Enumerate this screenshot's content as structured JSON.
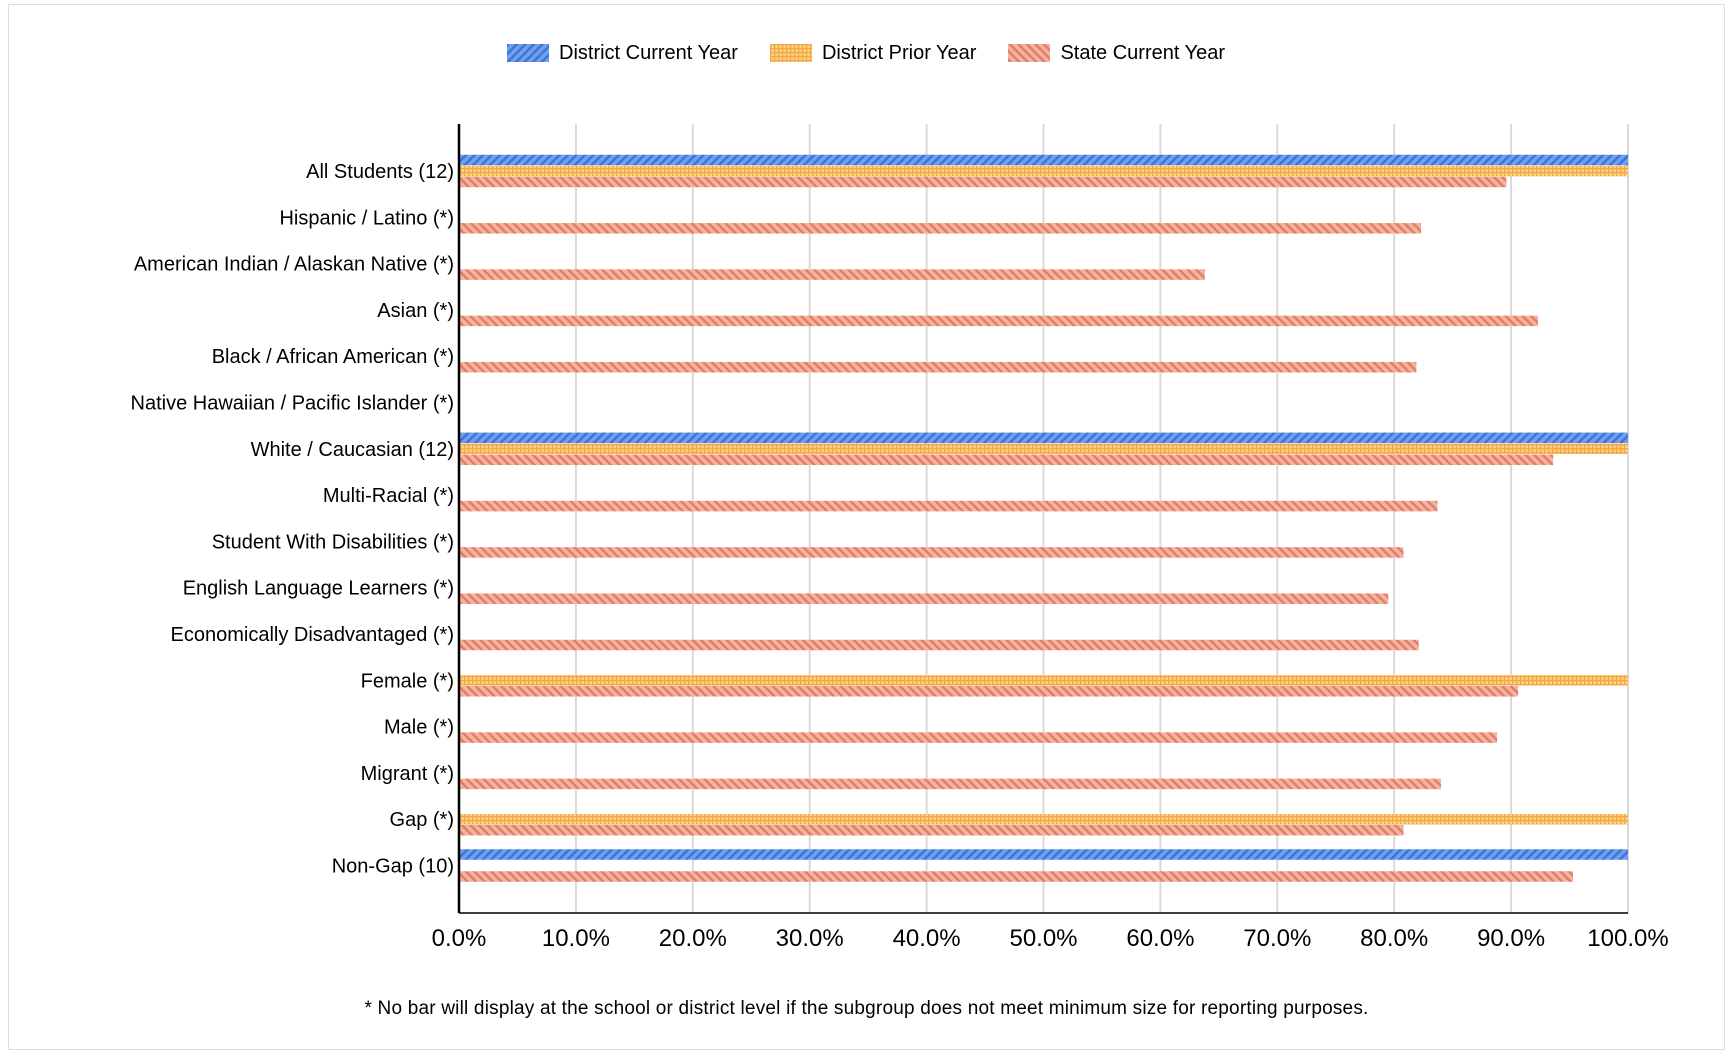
{
  "chart_data": {
    "type": "bar",
    "orientation": "horizontal",
    "categories": [
      "All Students (12)",
      "Hispanic / Latino (*)",
      "American Indian / Alaskan Native (*)",
      "Asian (*)",
      "Black / African American (*)",
      "Native Hawaiian / Pacific Islander (*)",
      "White / Caucasian (12)",
      "Multi-Racial (*)",
      "Student With Disabilities (*)",
      "English Language Learners (*)",
      "Economically Disadvantaged (*)",
      "Female (*)",
      "Male (*)",
      "Migrant (*)",
      "Gap (*)",
      "Non-Gap (10)"
    ],
    "series": [
      {
        "name": "District Current Year",
        "color": "#4a86e8",
        "pattern": "diagonal-hatch",
        "values": [
          100,
          null,
          null,
          null,
          null,
          null,
          100,
          null,
          null,
          null,
          null,
          null,
          null,
          null,
          null,
          100
        ]
      },
      {
        "name": "District Prior Year",
        "color": "#f6b26b",
        "pattern": "grid",
        "values": [
          100,
          null,
          null,
          null,
          null,
          null,
          100,
          null,
          null,
          null,
          null,
          100,
          null,
          null,
          100,
          null
        ]
      },
      {
        "name": "State Current Year",
        "color": "#ea9278",
        "pattern": "diagonal-hatch",
        "values": [
          89.6,
          82.3,
          63.8,
          92.3,
          81.9,
          null,
          93.6,
          83.7,
          80.8,
          79.5,
          82.1,
          90.6,
          88.8,
          84.0,
          80.8,
          95.3
        ]
      }
    ],
    "xlim": [
      0,
      100
    ],
    "xticks": [
      "0.0%",
      "10.0%",
      "20.0%",
      "30.0%",
      "40.0%",
      "50.0%",
      "60.0%",
      "70.0%",
      "80.0%",
      "90.0%",
      "100.0%"
    ],
    "grid": true,
    "legend": "top-center"
  },
  "footnote": "* No bar will display at the school or district level if the subgroup does not meet minimum size for reporting purposes."
}
